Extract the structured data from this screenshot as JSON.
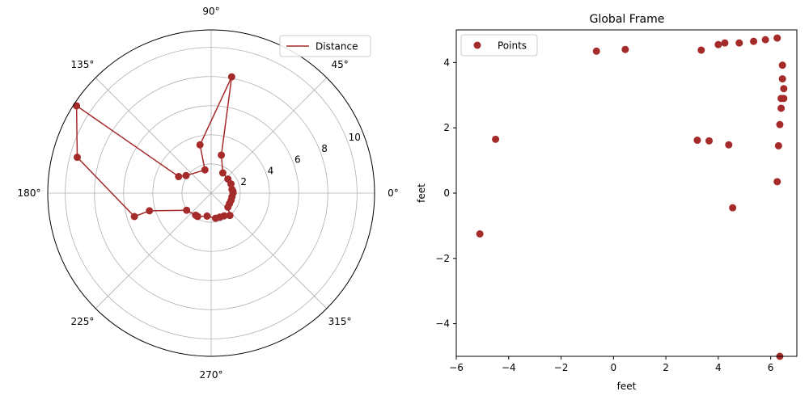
{
  "chart_data": [
    {
      "type": "line",
      "projection": "polar",
      "angle_unit": "degrees",
      "theta_ticks": [
        0,
        45,
        90,
        135,
        180,
        225,
        270,
        315
      ],
      "theta_tick_labels": [
        "0°",
        "45°",
        "90°",
        "135°",
        "180°",
        "225°",
        "270°",
        "315°"
      ],
      "r_ticks": [
        2,
        4,
        6,
        8,
        10
      ],
      "r_tick_labels": [
        "2",
        "4",
        "6",
        "8",
        "10"
      ],
      "rlim": [
        0,
        11.2
      ],
      "grid": true,
      "legend": {
        "position": "top-right"
      },
      "color": "#a52a2a",
      "series": [
        {
          "name": "Distance",
          "points": [
            {
              "theta": 5,
              "r": 1.5
            },
            {
              "theta": 10,
              "r": 1.45
            },
            {
              "theta": 0,
              "r": 1.5
            },
            {
              "theta": -10,
              "r": 1.45
            },
            {
              "theta": -20,
              "r": 1.45
            },
            {
              "theta": -30,
              "r": 1.45
            },
            {
              "theta": -40,
              "r": 1.5
            },
            {
              "theta": -50,
              "r": 2.0
            },
            {
              "theta": -60,
              "r": 1.8
            },
            {
              "theta": -70,
              "r": 1.75
            },
            {
              "theta": -80,
              "r": 1.75
            },
            {
              "theta": -100,
              "r": 1.6
            },
            {
              "theta": -120,
              "r": 1.85
            },
            {
              "theta": -125,
              "r": 1.85
            },
            {
              "theta": -145,
              "r": 2.05
            },
            {
              "theta": -164,
              "r": 4.4
            },
            {
              "theta": -163,
              "r": 5.5
            },
            {
              "theta": 165,
              "r": 9.5
            },
            {
              "theta": 147,
              "r": 11.0
            },
            {
              "theta": 153,
              "r": 2.5
            },
            {
              "theta": 145,
              "r": 2.1
            },
            {
              "theta": 105,
              "r": 1.65
            },
            {
              "theta": 103,
              "r": 3.4
            },
            {
              "theta": 80,
              "r": 8.1
            },
            {
              "theta": 75,
              "r": 2.7
            },
            {
              "theta": 60,
              "r": 1.6
            },
            {
              "theta": 40,
              "r": 1.5
            },
            {
              "theta": 25,
              "r": 1.5
            }
          ]
        }
      ]
    },
    {
      "type": "scatter",
      "title": "Global Frame",
      "xlabel": "feet",
      "ylabel": "feet",
      "xlim": [
        -6,
        7
      ],
      "ylim": [
        -5,
        5
      ],
      "xticks": [
        -6,
        -4,
        -2,
        0,
        2,
        4,
        6
      ],
      "xtick_labels": [
        "−6",
        "−4",
        "−2",
        "0",
        "2",
        "4",
        "6"
      ],
      "yticks": [
        -4,
        -2,
        0,
        2,
        4
      ],
      "ytick_labels": [
        "−4",
        "−2",
        "0",
        "2",
        "4"
      ],
      "grid": false,
      "legend": {
        "position": "top-left"
      },
      "color": "#a52a2a",
      "series": [
        {
          "name": "Points",
          "x": [
            -5.1,
            -4.5,
            -0.65,
            0.45,
            3.2,
            3.35,
            3.65,
            4.0,
            4.25,
            4.4,
            4.55,
            4.8,
            5.35,
            5.8,
            6.25,
            6.25,
            6.3,
            6.35,
            6.4,
            6.4,
            6.45,
            6.45,
            6.5,
            6.5,
            6.35
          ],
          "y": [
            -1.25,
            1.65,
            4.35,
            4.4,
            1.62,
            4.38,
            1.6,
            4.55,
            4.6,
            1.48,
            -0.45,
            4.6,
            4.65,
            4.7,
            4.75,
            0.35,
            1.45,
            2.1,
            2.6,
            2.9,
            3.92,
            3.5,
            3.2,
            2.9,
            -5.0
          ]
        }
      ]
    }
  ]
}
